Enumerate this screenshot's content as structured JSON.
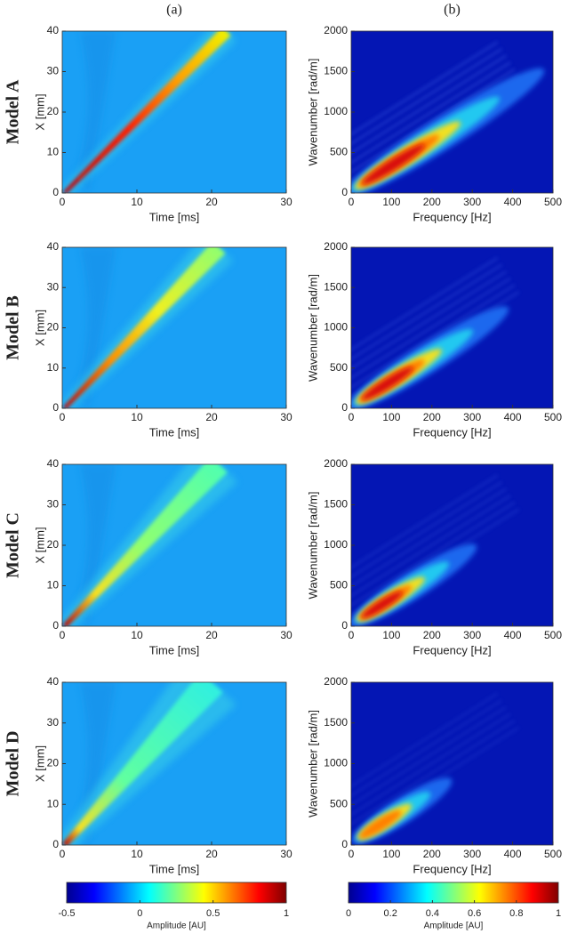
{
  "columns": [
    "(a)",
    "(b)"
  ],
  "rows": [
    "Model A",
    "Model B",
    "Model C",
    "Model D"
  ],
  "chart_data": [
    {
      "type": "heatmap",
      "xlabel": "Time [ms]",
      "ylabel": "X [mm]",
      "xlim": [
        0,
        30
      ],
      "ylim": [
        0,
        40
      ],
      "xticks": [
        0,
        10,
        20,
        30
      ],
      "yticks": [
        0,
        10,
        20,
        30,
        40
      ],
      "colormap": "jet"
    },
    {
      "type": "heatmap",
      "xlabel": "Frequency [Hz]",
      "ylabel": "Wavenumber [rad/m]",
      "xlim": [
        0,
        500
      ],
      "ylim": [
        0,
        2000
      ],
      "xticks": [
        0,
        100,
        200,
        300,
        400,
        500
      ],
      "yticks": [
        0,
        500,
        1000,
        1500,
        2000
      ],
      "colormap": "jet"
    },
    {
      "type": "heatmap",
      "xlabel": "Time [ms]",
      "ylabel": "X [mm]",
      "xlim": [
        0,
        30
      ],
      "ylim": [
        0,
        40
      ],
      "xticks": [
        0,
        10,
        20,
        30
      ],
      "yticks": [
        0,
        10,
        20,
        30,
        40
      ],
      "colormap": "jet"
    },
    {
      "type": "heatmap",
      "xlabel": "Frequency [Hz]",
      "ylabel": "Wavenumber [rad/m]",
      "xlim": [
        0,
        500
      ],
      "ylim": [
        0,
        2000
      ],
      "xticks": [
        0,
        100,
        200,
        300,
        400,
        500
      ],
      "yticks": [
        0,
        500,
        1000,
        1500,
        2000
      ],
      "colormap": "jet"
    },
    {
      "type": "heatmap",
      "xlabel": "Time [ms]",
      "ylabel": "X [mm]",
      "xlim": [
        0,
        30
      ],
      "ylim": [
        0,
        40
      ],
      "xticks": [
        0,
        10,
        20,
        30
      ],
      "yticks": [
        0,
        10,
        20,
        30,
        40
      ],
      "colormap": "jet"
    },
    {
      "type": "heatmap",
      "xlabel": "Frequency [Hz]",
      "ylabel": "Wavenumber [rad/m]",
      "xlim": [
        0,
        500
      ],
      "ylim": [
        0,
        2000
      ],
      "xticks": [
        0,
        100,
        200,
        300,
        400,
        500
      ],
      "yticks": [
        0,
        500,
        1000,
        1500,
        2000
      ],
      "colormap": "jet"
    },
    {
      "type": "heatmap",
      "xlabel": "Time [ms]",
      "ylabel": "X [mm]",
      "xlim": [
        0,
        30
      ],
      "ylim": [
        0,
        40
      ],
      "xticks": [
        0,
        10,
        20,
        30
      ],
      "yticks": [
        0,
        10,
        20,
        30,
        40
      ],
      "colormap": "jet"
    },
    {
      "type": "heatmap",
      "xlabel": "Frequency [Hz]",
      "ylabel": "Wavenumber [rad/m]",
      "xlim": [
        0,
        500
      ],
      "ylim": [
        0,
        2000
      ],
      "xticks": [
        0,
        100,
        200,
        300,
        400,
        500
      ],
      "yticks": [
        0,
        500,
        1000,
        1500,
        2000
      ],
      "colormap": "jet"
    }
  ],
  "colorbars": [
    {
      "label": "Amplitude [AU]",
      "lim": [
        -0.5,
        1
      ],
      "ticks": [
        -0.5,
        0,
        0.5,
        1
      ],
      "colormap": "jet"
    },
    {
      "label": "Amplitude [AU]",
      "lim": [
        0,
        1
      ],
      "ticks": [
        0,
        0.2,
        0.4,
        0.6,
        0.8,
        1
      ],
      "colormap": "jet"
    }
  ]
}
